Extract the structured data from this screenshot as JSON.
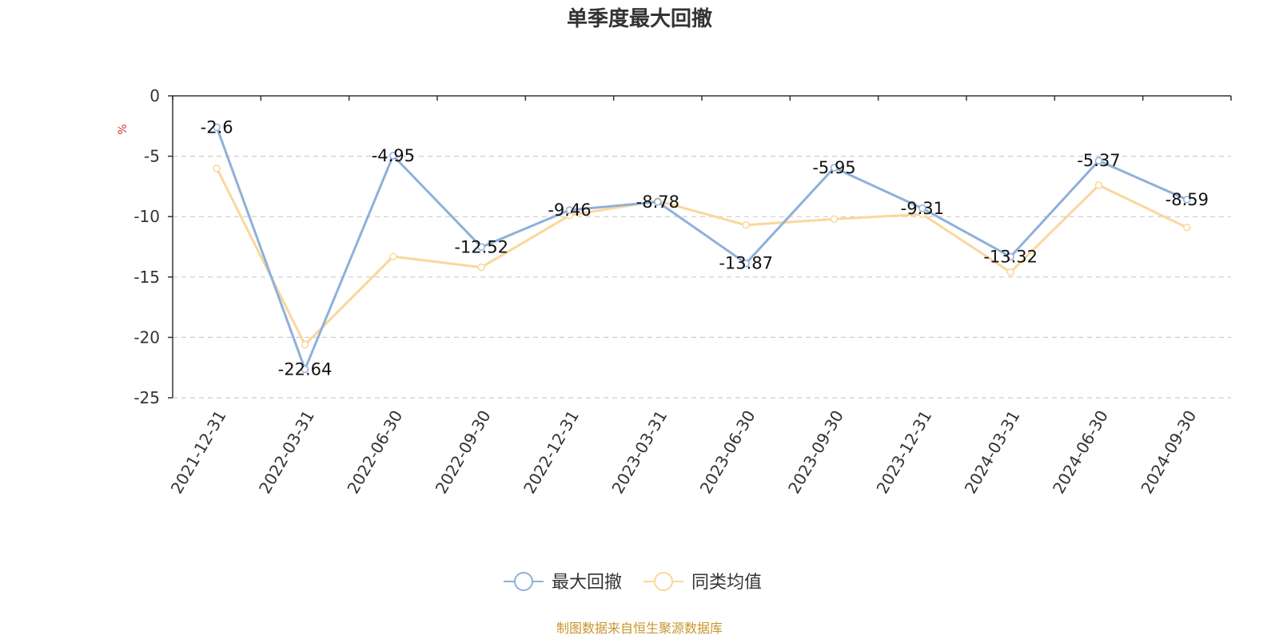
{
  "chart_data": {
    "type": "line",
    "title": "单季度最大回撤",
    "unit": "%",
    "categories": [
      "2021-12-31",
      "2022-03-31",
      "2022-06-30",
      "2022-09-30",
      "2022-12-31",
      "2023-03-31",
      "2023-06-30",
      "2023-09-30",
      "2023-12-31",
      "2024-03-31",
      "2024-06-30",
      "2024-09-30"
    ],
    "series": [
      {
        "name": "最大回撤",
        "color": "#8fb0da",
        "values": [
          -2.6,
          -22.64,
          -4.95,
          -12.52,
          -9.46,
          -8.78,
          -13.87,
          -5.95,
          -9.31,
          -13.32,
          -5.37,
          -8.59
        ]
      },
      {
        "name": "同类均值",
        "color": "#fad79a",
        "values": [
          -6.0,
          -20.6,
          -13.3,
          -14.2,
          -9.9,
          -8.7,
          -10.7,
          -10.2,
          -9.8,
          -14.6,
          -7.4,
          -10.9
        ]
      }
    ],
    "ylim": [
      -25,
      0
    ],
    "yticks": [
      0,
      -5,
      -10,
      -15,
      -20,
      -25
    ],
    "grid": true,
    "legend_position": "bottom"
  },
  "source_text": "制图数据来自恒生聚源数据库"
}
